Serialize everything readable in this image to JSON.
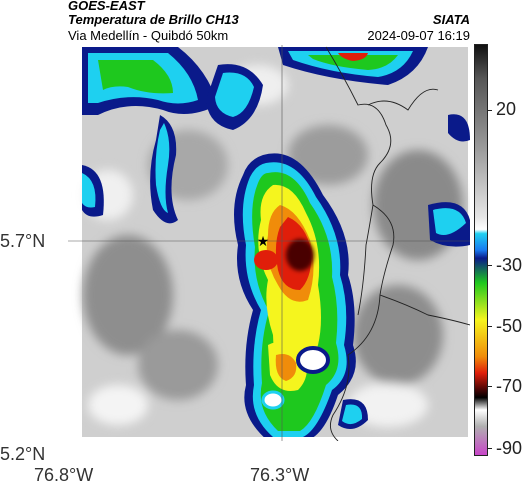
{
  "header": {
    "satellite": "GOES-EAST",
    "product": "Temperatura de Brillo CH13",
    "route": "Via Medellín - Quibdó 50km",
    "agency": "SIATA",
    "datetime": "2024-09-07 16:19"
  },
  "map": {
    "lat_labels": [
      "5.7°N",
      "5.2°N"
    ],
    "lon_labels": [
      "76.8°W",
      "76.3°W"
    ],
    "marker_symbol": "★"
  },
  "colorbar": {
    "labels": [
      "20",
      "-30",
      "-50",
      "-70",
      "-90"
    ],
    "colors": {
      "black": "#111111",
      "gray": "#9a9a9a",
      "white": "#ffffff",
      "cyan": "#1ed0f0",
      "blue": "#0a1a8a",
      "green": "#1ec81e",
      "yellow": "#f5f51e",
      "orange": "#f08c0a",
      "red": "#e01e0a",
      "darkred": "#4a0505",
      "magenta": "#c846c8"
    }
  }
}
